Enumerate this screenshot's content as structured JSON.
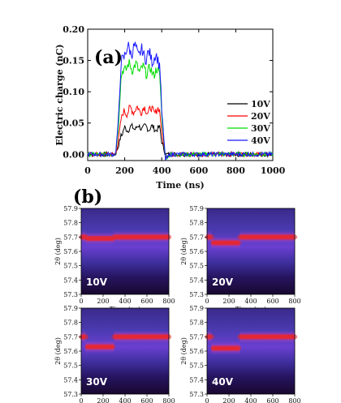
{
  "chart_data": [
    {
      "type": "line",
      "panel_label": "(a)",
      "xlabel": "Time (ns)",
      "ylabel": "Electric charge (nC)",
      "xlim": [
        0,
        1000
      ],
      "ylim": [
        -0.01,
        0.2
      ],
      "x_ticks": [
        "0",
        "200",
        "400",
        "600",
        "800",
        "1000"
      ],
      "y_ticks": [
        "0.00",
        "0.05",
        "0.10",
        "0.15",
        "0.20"
      ],
      "legend_position": "right",
      "series": [
        {
          "name": "10V",
          "color": "#000000",
          "x": [
            0,
            150,
            165,
            180,
            200,
            250,
            300,
            350,
            390,
            400,
            420,
            450,
            1000
          ],
          "y": [
            0.0,
            0.0,
            0.012,
            0.03,
            0.04,
            0.043,
            0.043,
            0.042,
            0.04,
            0.02,
            0.0,
            0.0,
            0.0
          ]
        },
        {
          "name": "20V",
          "color": "#ff0000",
          "x": [
            0,
            150,
            165,
            180,
            200,
            250,
            300,
            350,
            390,
            400,
            420,
            450,
            1000
          ],
          "y": [
            0.0,
            0.0,
            0.02,
            0.055,
            0.068,
            0.072,
            0.071,
            0.07,
            0.069,
            0.035,
            -0.002,
            0.0,
            0.0
          ]
        },
        {
          "name": "30V",
          "color": "#00dd00",
          "x": [
            0,
            150,
            165,
            180,
            200,
            250,
            300,
            350,
            390,
            400,
            420,
            450,
            1000
          ],
          "y": [
            0.0,
            0.0,
            0.04,
            0.12,
            0.14,
            0.14,
            0.135,
            0.132,
            0.13,
            0.06,
            -0.005,
            0.0,
            0.0
          ]
        },
        {
          "name": "40V",
          "color": "#1a1aff",
          "x": [
            0,
            150,
            165,
            180,
            200,
            250,
            300,
            350,
            390,
            400,
            420,
            450,
            1000
          ],
          "y": [
            0.0,
            0.0,
            0.05,
            0.14,
            0.165,
            0.168,
            0.16,
            0.155,
            0.15,
            0.07,
            -0.008,
            0.0,
            0.0
          ]
        }
      ]
    },
    {
      "type": "heatmap",
      "panel_label": "(b)",
      "xlabel": "Time (ns)",
      "ylabel": "2θ (deg)",
      "xlim": [
        0,
        800
      ],
      "ylim": [
        57.3,
        57.9
      ],
      "x_ticks": [
        "0",
        "200",
        "400",
        "600",
        "800"
      ],
      "y_ticks": [
        "57.3",
        "57.4",
        "57.5",
        "57.6",
        "57.7",
        "57.8",
        "57.9"
      ],
      "panels": [
        {
          "label": "10V",
          "peak_baseline_deg": 57.7,
          "peak_during_pulse_deg": 57.69
        },
        {
          "label": "20V",
          "peak_baseline_deg": 57.7,
          "peak_during_pulse_deg": 57.66
        },
        {
          "label": "30V",
          "peak_baseline_deg": 57.7,
          "peak_during_pulse_deg": 57.63
        },
        {
          "label": "40V",
          "peak_baseline_deg": 57.7,
          "peak_during_pulse_deg": 57.62
        }
      ]
    }
  ],
  "colors": {
    "heat_background": "#18082e",
    "heat_band": "#6a3fd0",
    "heat_peak": "#e8262c"
  }
}
